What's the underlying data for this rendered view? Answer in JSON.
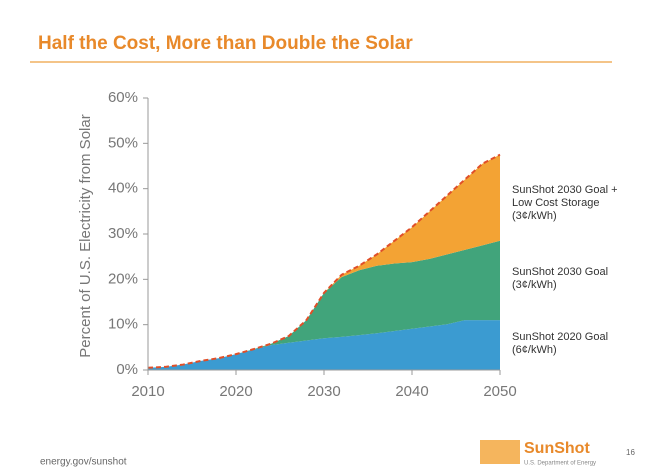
{
  "chart_data": {
    "type": "stacked_area",
    "title": "Half the Cost, More than Double the Solar",
    "y_label": "Percent of U.S. Electricity from Solar",
    "x": [
      2010,
      2012,
      2014,
      2016,
      2018,
      2020,
      2022,
      2024,
      2026,
      2028,
      2030,
      2032,
      2034,
      2036,
      2038,
      2040,
      2042,
      2044,
      2046,
      2048,
      2050
    ],
    "series": [
      {
        "name": "SunShot 2020 Goal (6¢/kWh)",
        "color": "#3b9bd1",
        "values": [
          0.5,
          0.7,
          1.2,
          2,
          2.6,
          3.5,
          4.5,
          5.5,
          6,
          6.5,
          7,
          7.3,
          7.7,
          8.1,
          8.6,
          9.1,
          9.6,
          10.1,
          11,
          11,
          11
        ]
      },
      {
        "name": "SunShot 2030 Goal (3¢/kWh)",
        "color": "#41a47b",
        "values": [
          0,
          0,
          0,
          0,
          0,
          0,
          0.1,
          0.3,
          1.5,
          4.5,
          10,
          13.2,
          14.3,
          14.9,
          14.9,
          14.7,
          14.9,
          15.4,
          15.5,
          16.5,
          17.5
        ]
      },
      {
        "name": "SunShot 2030 Goal + Low Cost Storage (3¢/kWh)",
        "color": "#f3a334",
        "edge_color": "#e04f28",
        "values": [
          0,
          0,
          0,
          0,
          0,
          0,
          0,
          0,
          0,
          0,
          0,
          0.5,
          1,
          2.5,
          5,
          7.7,
          10.5,
          13,
          15.5,
          18,
          19
        ]
      }
    ],
    "xlim": [
      2010,
      2050
    ],
    "xticks": [
      2010,
      2020,
      2030,
      2040,
      2050
    ],
    "ylim": [
      0,
      60
    ],
    "yticks": [
      {
        "value": 0,
        "label": "0%"
      },
      {
        "value": 10,
        "label": "10%"
      },
      {
        "value": 20,
        "label": "20%"
      },
      {
        "value": 30,
        "label": "30%"
      },
      {
        "value": 40,
        "label": "40%"
      },
      {
        "value": 50,
        "label": "50%"
      },
      {
        "value": 60,
        "label": "60%"
      }
    ]
  },
  "footer": {
    "url": "energy.gov/sunshot",
    "logo": "SunShot",
    "logo_sub": "U.S. Department of Energy",
    "page": "16"
  }
}
